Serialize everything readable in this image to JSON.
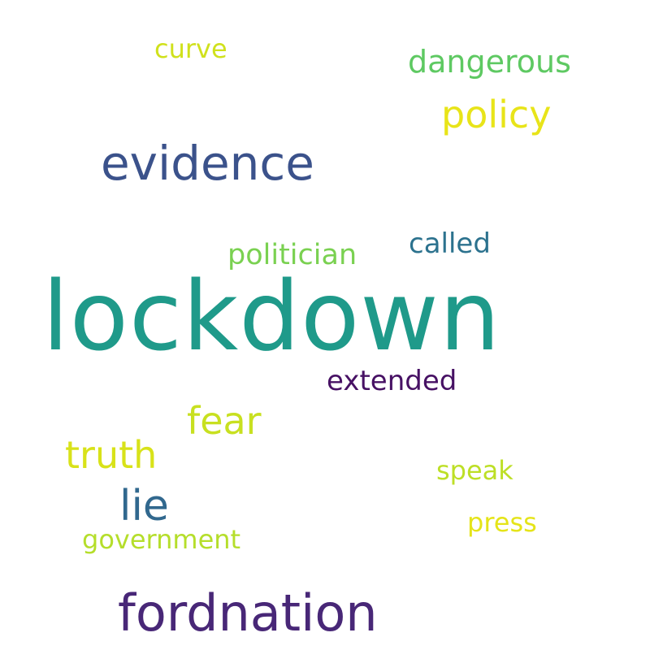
{
  "cloud": {
    "words": [
      {
        "text": "lockdown",
        "color": "#1f9a8a"
      },
      {
        "text": "evidence",
        "color": "#3b528b"
      },
      {
        "text": "fordnation",
        "color": "#482777"
      },
      {
        "text": "policy",
        "color": "#e8e419"
      },
      {
        "text": "dangerous",
        "color": "#5ec962"
      },
      {
        "text": "curve",
        "color": "#d0e11c"
      },
      {
        "text": "politician",
        "color": "#7ad151"
      },
      {
        "text": "called",
        "color": "#2c728e"
      },
      {
        "text": "extended",
        "color": "#471164"
      },
      {
        "text": "fear",
        "color": "#c8e020"
      },
      {
        "text": "truth",
        "color": "#d8e219"
      },
      {
        "text": "lie",
        "color": "#31688e"
      },
      {
        "text": "speak",
        "color": "#bddf26"
      },
      {
        "text": "press",
        "color": "#e5e419"
      },
      {
        "text": "government",
        "color": "#b5de2b"
      }
    ]
  }
}
